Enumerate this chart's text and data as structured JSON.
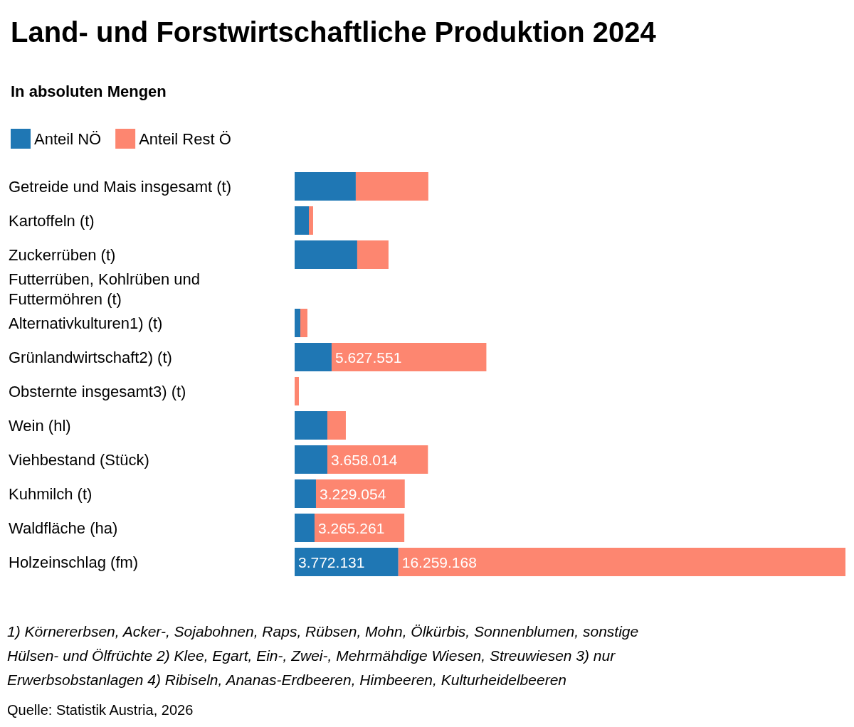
{
  "chart_data": {
    "type": "bar",
    "orientation": "horizontal",
    "stacked": true,
    "title": "Land- und Forstwirtschaftliche Produktion 2024",
    "subtitle": "In absoluten Mengen",
    "legend": "top left",
    "categories": [
      "Getreide und Mais insgesamt (t)",
      "Kartoffeln (t)",
      "Zuckerrüben (t)",
      "Futterrüben, Kohlrüben und Futtermöhren (t)",
      "Alternativkulturen1) (t)",
      "Grünlandwirtschaft2) (t)",
      "Obsternte insgesamt3) (t)",
      "Wein (hl)",
      "Viehbestand (Stück)",
      "Kuhmilch (t)",
      "Waldfläche (ha)",
      "Holzeinschlag (fm)"
    ],
    "series": [
      {
        "name": "Anteil NÖ",
        "color": "#1f77b4",
        "values": [
          2224000,
          517000,
          2276000,
          null,
          207000,
          1345000,
          null,
          1190000,
          1190000,
          776000,
          724000,
          3772131
        ],
        "value_labels": [
          null,
          null,
          null,
          null,
          null,
          null,
          null,
          null,
          null,
          null,
          null,
          "3.772.131"
        ]
      },
      {
        "name": "Anteil Rest Ö",
        "color": "#fd8670",
        "values": [
          2638000,
          155000,
          1138000,
          null,
          259000,
          5627551,
          155000,
          672000,
          3658014,
          3229054,
          3265261,
          16259168
        ],
        "value_labels": [
          null,
          null,
          null,
          null,
          null,
          "5.627.551",
          null,
          null,
          "3.658.014",
          "3.229.054",
          "3.265.261",
          "16.259.168"
        ]
      }
    ],
    "annotations": [
      "1) Körnererbsen, Acker-, Sojabohnen, Raps, Rübsen, Mohn, Ölkürbis, Sonnenblumen, sonstige Hülsen- und Ölfrüchte 2) Klee, Egart, Ein-, Zwei-, Mehrmähdige Wiesen, Streuwiesen 3) nur Erwerbsobstanlagen 4) Ribiseln, Ananas-Erdbeeren, Himbeeren, Kulturheidelbeeren",
      "Quelle: Statistik Austria, 2026"
    ]
  }
}
